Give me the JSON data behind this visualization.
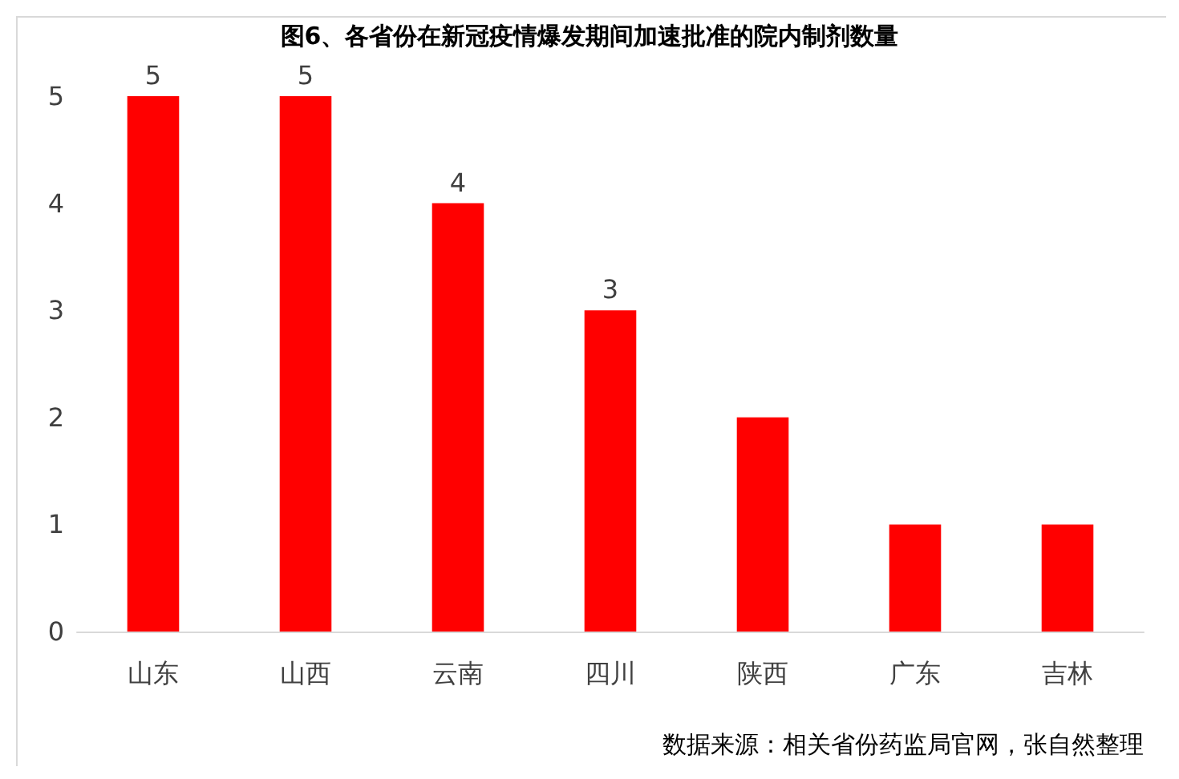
{
  "chart_data": {
    "type": "bar",
    "title": "图6、各省份在新冠疫情爆发期间加速批准的院内制剂数量",
    "categories": [
      "山东",
      "山西",
      "云南",
      "四川",
      "陕西",
      "广东",
      "吉林"
    ],
    "values": [
      5,
      5,
      4,
      3,
      2,
      1,
      1
    ],
    "value_labels": [
      "5",
      "5",
      "4",
      "3",
      null,
      null,
      null
    ],
    "color": "#ff0000",
    "ylim": [
      0,
      5
    ],
    "yticks": [
      0,
      1,
      2,
      3,
      4,
      5
    ],
    "grid": false,
    "annotations": [
      "数据来源：相关省份药监局官网，张自然整理"
    ]
  }
}
